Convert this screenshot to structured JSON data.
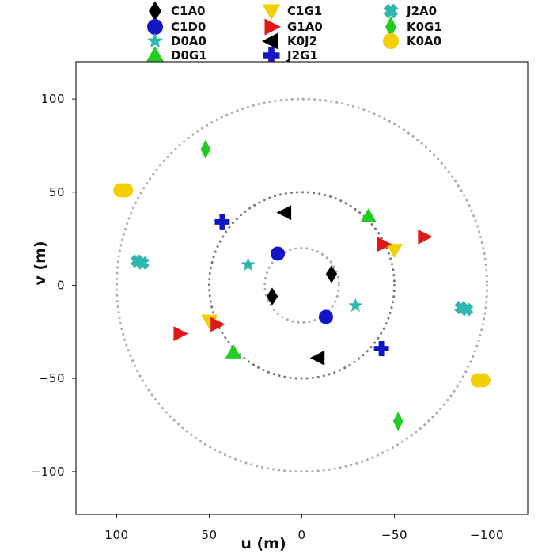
{
  "chart_data": {
    "type": "scatter",
    "xlabel": "u (m)",
    "ylabel": "v (m)",
    "xlim": [
      122,
      -122
    ],
    "ylim": [
      -123,
      120
    ],
    "x_ticks": [
      100,
      50,
      0,
      -50,
      -100
    ],
    "y_ticks": [
      100,
      50,
      0,
      -50,
      -100
    ],
    "x_tick_labels": [
      "100",
      "50",
      "0",
      "−50",
      "−100"
    ],
    "y_tick_labels": [
      "100",
      "50",
      "0",
      "−50",
      "−100"
    ],
    "x_reversed": true,
    "grid": false,
    "legend_position": "top (above plot, 3 columns)",
    "circles": [
      {
        "radius": 20,
        "color": "#aaaaaa"
      },
      {
        "radius": 50,
        "color": "#777777"
      },
      {
        "radius": 100,
        "color": "#aaaaaa"
      }
    ],
    "series": [
      {
        "name": "C1A0",
        "marker": "diamond",
        "color": "#000000",
        "points": [
          [
            -16,
            6
          ],
          [
            16,
            -6
          ]
        ]
      },
      {
        "name": "C1D0",
        "marker": "circle",
        "color": "#1414c8",
        "points": [
          [
            13,
            17
          ],
          [
            -13,
            -17
          ]
        ]
      },
      {
        "name": "D0A0",
        "marker": "star",
        "color": "#2eb8ad",
        "points": [
          [
            29,
            11
          ],
          [
            -29,
            -11
          ]
        ]
      },
      {
        "name": "D0G1",
        "marker": "triangle-up",
        "color": "#22cc22",
        "points": [
          [
            -36,
            37
          ],
          [
            37,
            -36
          ]
        ]
      },
      {
        "name": "C1G1",
        "marker": "triangle-down",
        "color": "#f2d000",
        "points": [
          [
            -50,
            19
          ],
          [
            50,
            -19
          ]
        ]
      },
      {
        "name": "G1A0",
        "marker": "triangle-right",
        "color": "#e01818",
        "points": [
          [
            -44,
            22
          ],
          [
            -66,
            26
          ],
          [
            66,
            -26
          ],
          [
            46,
            -21
          ]
        ]
      },
      {
        "name": "K0J2",
        "marker": "triangle-left",
        "color": "#000000",
        "points": [
          [
            9,
            39
          ],
          [
            -9,
            -39
          ]
        ]
      },
      {
        "name": "J2G1",
        "marker": "plus",
        "color": "#1414c8",
        "points": [
          [
            43,
            34
          ],
          [
            -43,
            -34
          ]
        ]
      },
      {
        "name": "J2A0",
        "marker": "x",
        "color": "#2eb8ad",
        "points": [
          [
            89,
            13
          ],
          [
            86,
            12
          ],
          [
            -89,
            -13
          ],
          [
            -86,
            -12
          ]
        ]
      },
      {
        "name": "K0G1",
        "marker": "thin-diamond",
        "color": "#22cc22",
        "points": [
          [
            52,
            73
          ],
          [
            -52,
            -73
          ]
        ]
      },
      {
        "name": "K0A0",
        "marker": "circle",
        "color": "#f2d000",
        "points": [
          [
            98,
            51
          ],
          [
            95,
            51
          ],
          [
            -98,
            -51
          ],
          [
            -95,
            -51
          ]
        ]
      }
    ]
  }
}
